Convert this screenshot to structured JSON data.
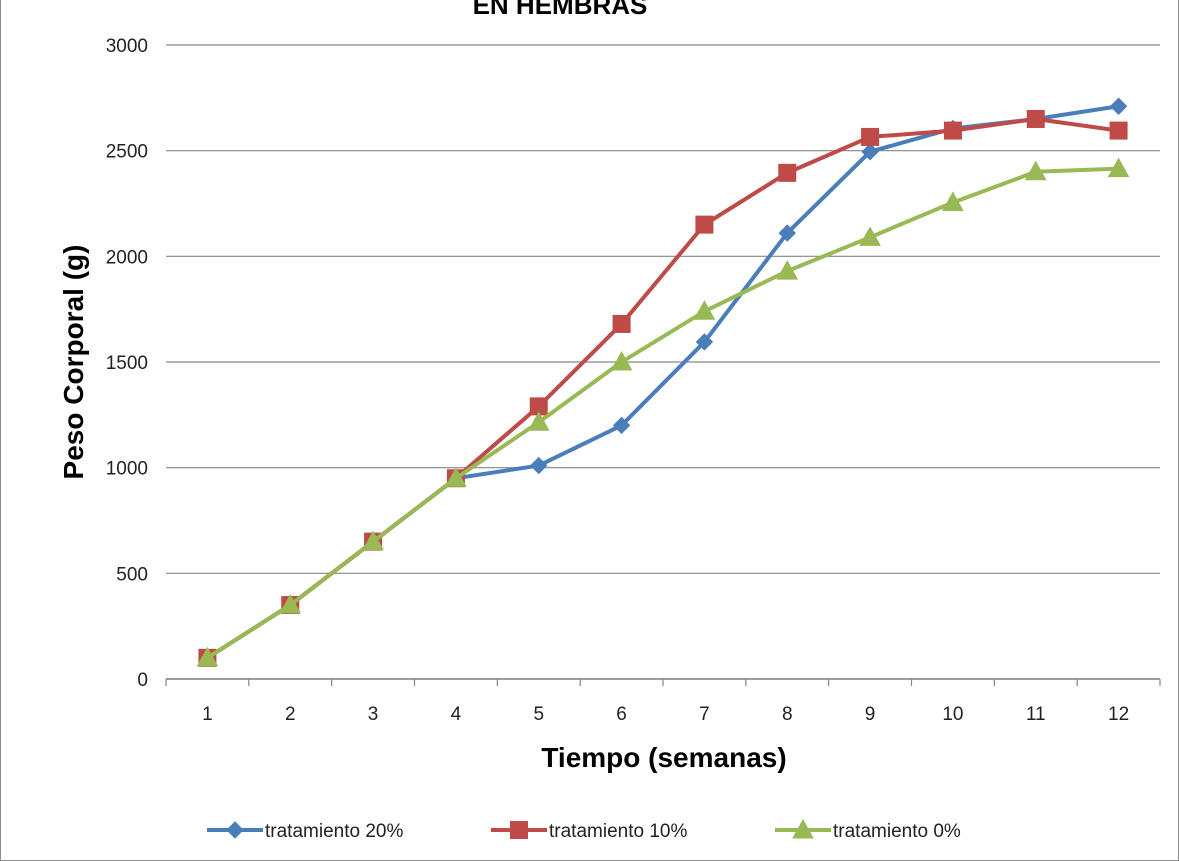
{
  "chart_data": {
    "type": "line",
    "title": "EN HEMBRAS",
    "xlabel": "Tiempo (semanas)",
    "ylabel": "Peso Corporal (g)",
    "ylim": [
      0,
      3000
    ],
    "yticks": [
      "0",
      "500",
      "1000",
      "1500",
      "2000",
      "2500",
      "3000"
    ],
    "categories": [
      "1",
      "2",
      "3",
      "4",
      "5",
      "6",
      "7",
      "8",
      "9",
      "10",
      "11",
      "12"
    ],
    "grid": true,
    "legend_position": "bottom",
    "series": [
      {
        "name": "tratamiento 20%",
        "color": "#4a7ebb",
        "marker": "diamond",
        "values": [
          100,
          350,
          650,
          950,
          1010,
          1200,
          1595,
          2110,
          2495,
          2605,
          2650,
          2710
        ]
      },
      {
        "name": "tratamiento 10%",
        "color": "#be4b48",
        "marker": "square",
        "values": [
          100,
          350,
          650,
          950,
          1290,
          1680,
          2150,
          2395,
          2565,
          2595,
          2650,
          2595
        ]
      },
      {
        "name": "tratamiento 0%",
        "color": "#98b954",
        "marker": "triangle",
        "values": [
          100,
          350,
          650,
          950,
          1215,
          1500,
          1740,
          1930,
          2090,
          2255,
          2400,
          2415
        ]
      }
    ]
  }
}
